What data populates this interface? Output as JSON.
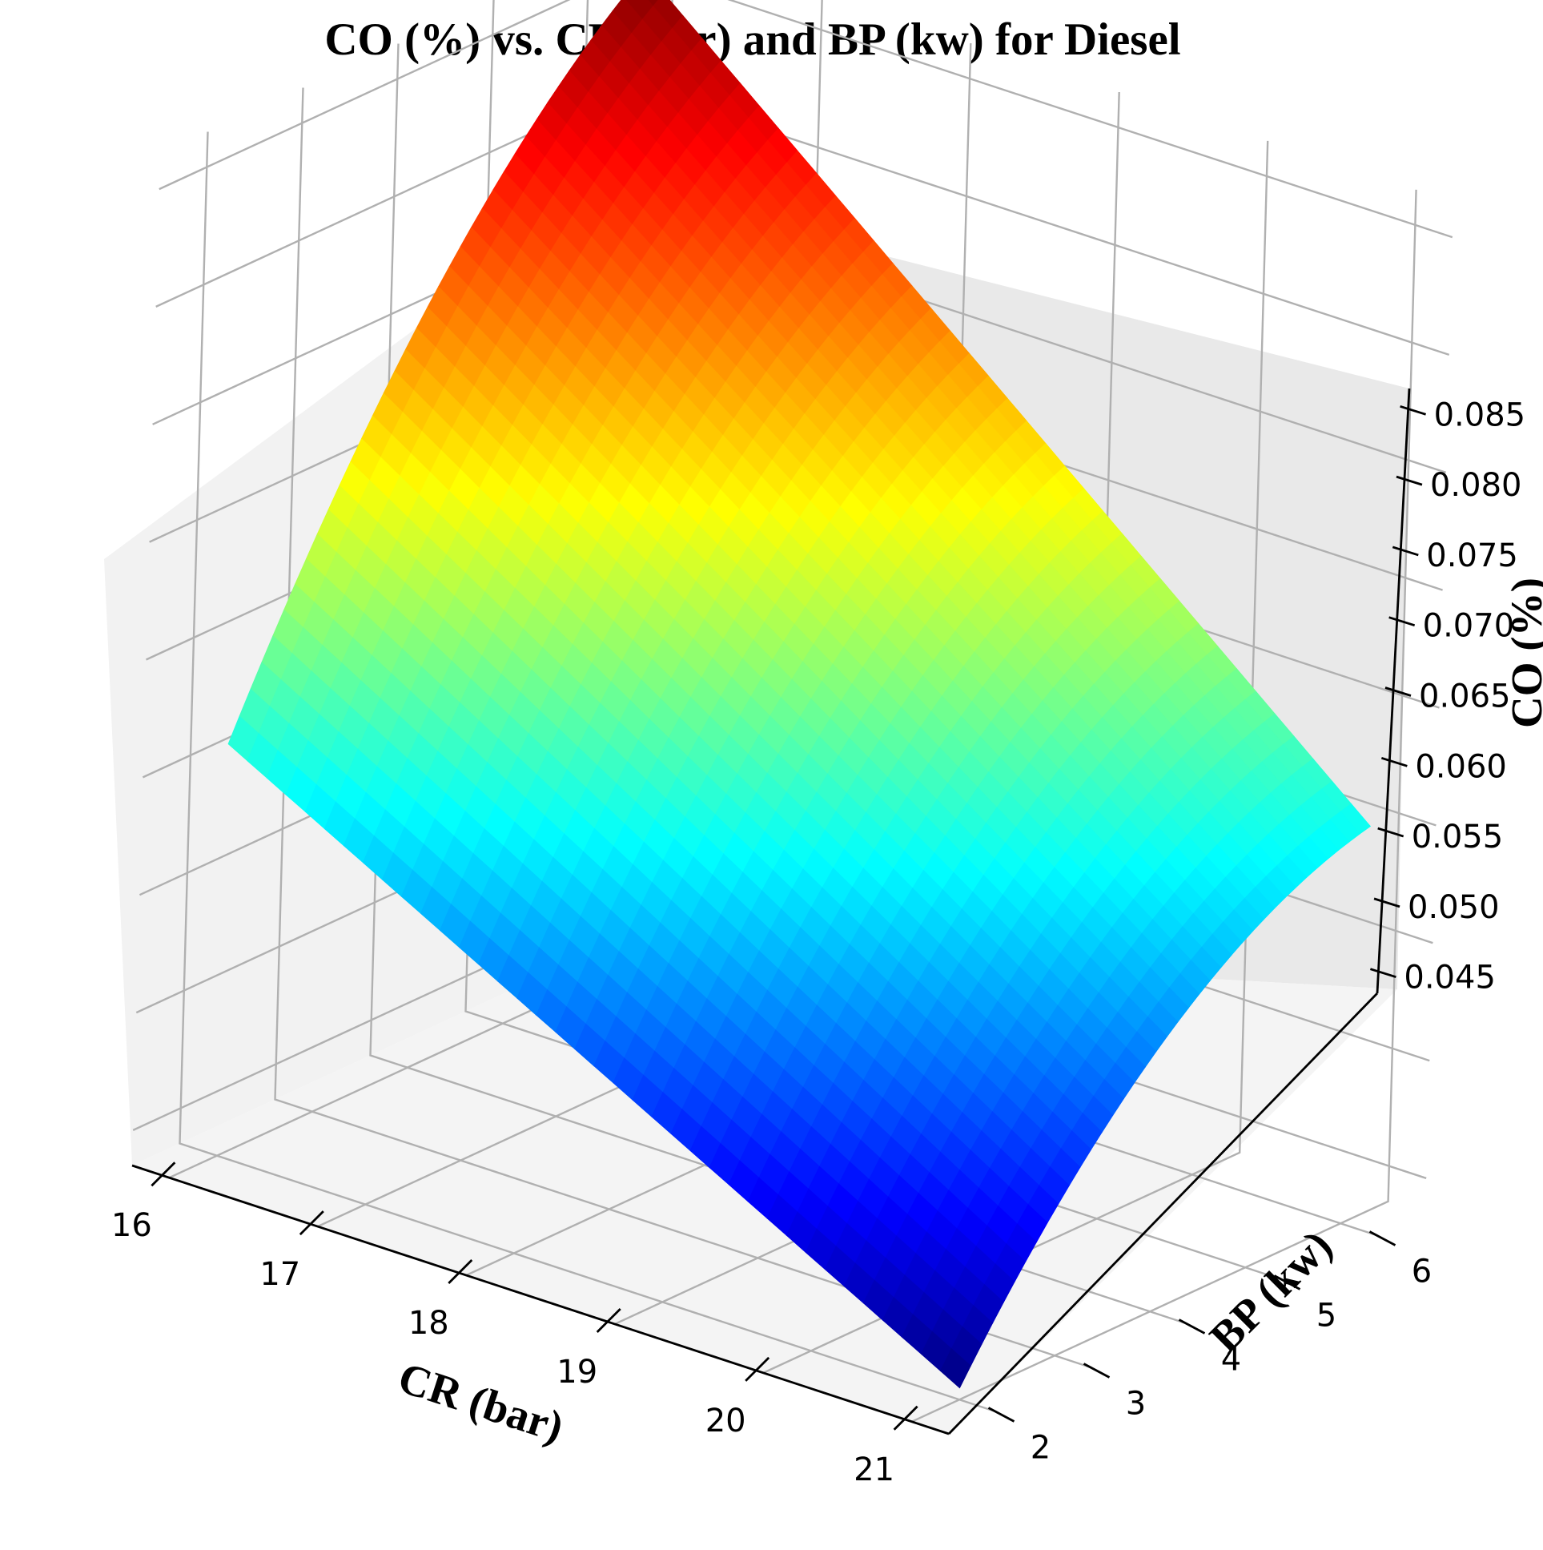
{
  "chart_data": {
    "type": "surface3d",
    "title": "CO (%) vs. CR (bar) and BP (kw) for Diesel",
    "xlabel": "CR (bar)",
    "ylabel": "BP (kw)",
    "zlabel": "CO (%)",
    "xlim": [
      15.75,
      21.25
    ],
    "ylim": [
      1.5,
      6.5
    ],
    "zlim": [
      0.0435,
      0.0865
    ],
    "x_ticks": [
      "16",
      "17",
      "18",
      "19",
      "20",
      "21"
    ],
    "y_ticks": [
      "2",
      "3",
      "4",
      "5",
      "6"
    ],
    "z_ticks": [
      "0.045",
      "0.050",
      "0.055",
      "0.060",
      "0.065",
      "0.070",
      "0.075",
      "0.080",
      "0.085"
    ],
    "colormap": "jet",
    "grid": true,
    "surface_corners": [
      {
        "CR": 16,
        "BP": 2,
        "CO": 0.061
      },
      {
        "CR": 16,
        "BP": 6.2,
        "CO": 0.086
      },
      {
        "CR": 21,
        "BP": 6.2,
        "CO": 0.06
      },
      {
        "CR": 21,
        "BP": 2,
        "CO": 0.044
      }
    ],
    "surface_shape": "CO rises with BP and falls with CR, with a slight upward bow in the middle of the BP range",
    "colors": {
      "pane_left": "#f2f2f2",
      "pane_back": "#e9e9e9",
      "pane_floor": "#f4f4f4",
      "grid": "#b0b0b0"
    }
  }
}
